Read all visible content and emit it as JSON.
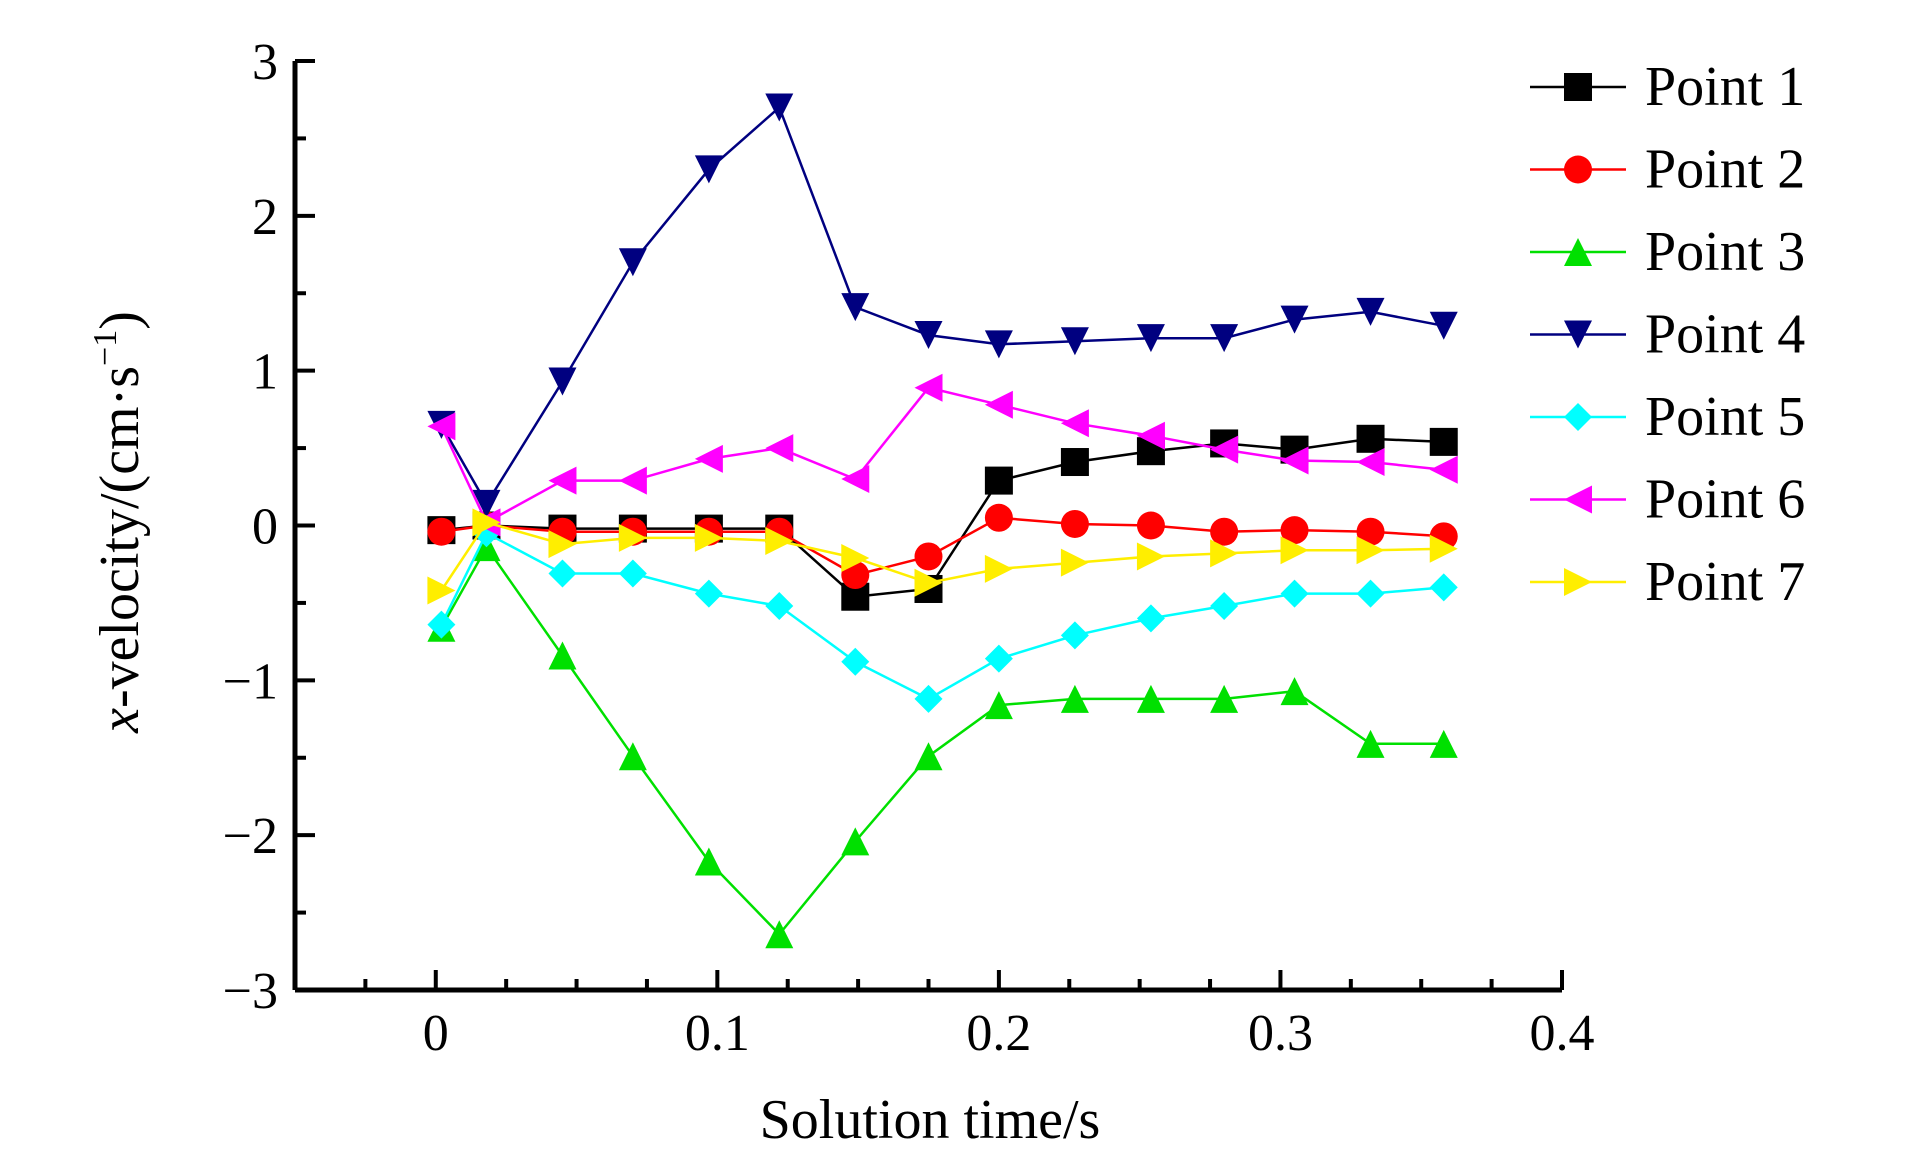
{
  "chart_data": {
    "type": "line",
    "xlabel": "Solution time/s",
    "ylabel": {
      "var": "x",
      "rest": "-velocity/(cm·s",
      "sup": "−1",
      "close": ")"
    },
    "xlim": [
      -0.05,
      0.4
    ],
    "ylim": [
      -3,
      3
    ],
    "x_ticks": [
      0,
      0.1,
      0.2,
      0.3,
      0.4
    ],
    "x_tick_labels": [
      "0",
      "0.1",
      "0.2",
      "0.3",
      "0.4"
    ],
    "y_ticks": [
      -3,
      -2,
      -1,
      0,
      1,
      2,
      3
    ],
    "y_tick_labels": [
      "−3",
      "−2",
      "−1",
      "0",
      "1",
      "2",
      "3"
    ],
    "grid": false,
    "legend_position": "top-right",
    "x": [
      0.002,
      0.018,
      0.045,
      0.07,
      0.097,
      0.122,
      0.149,
      0.175,
      0.2,
      0.227,
      0.254,
      0.28,
      0.305,
      0.332,
      0.358
    ],
    "series": [
      {
        "name": "Point 1",
        "color": "#000000",
        "marker": "square",
        "values": [
          -0.03,
          0.0,
          -0.02,
          -0.02,
          -0.02,
          -0.02,
          -0.46,
          -0.41,
          0.29,
          0.41,
          0.48,
          0.53,
          0.49,
          0.56,
          0.54
        ]
      },
      {
        "name": "Point 2",
        "color": "#ff0000",
        "marker": "circle",
        "values": [
          -0.04,
          0.0,
          -0.04,
          -0.04,
          -0.04,
          -0.04,
          -0.32,
          -0.2,
          0.05,
          0.01,
          0.0,
          -0.04,
          -0.03,
          -0.04,
          -0.07
        ]
      },
      {
        "name": "Point 3",
        "color": "#00e000",
        "marker": "triangle-up",
        "values": [
          -0.66,
          -0.14,
          -0.84,
          -1.49,
          -2.17,
          -2.64,
          -2.04,
          -1.49,
          -1.16,
          -1.12,
          -1.12,
          -1.12,
          -1.07,
          -1.41,
          -1.41
        ]
      },
      {
        "name": "Point 4",
        "color": "#000080",
        "marker": "triangle-down",
        "values": [
          0.65,
          0.14,
          0.93,
          1.7,
          2.3,
          2.7,
          1.41,
          1.23,
          1.17,
          1.19,
          1.21,
          1.21,
          1.33,
          1.38,
          1.29
        ]
      },
      {
        "name": "Point 5",
        "color": "#00ffff",
        "marker": "diamond",
        "values": [
          -0.64,
          -0.05,
          -0.31,
          -0.31,
          -0.44,
          -0.52,
          -0.88,
          -1.12,
          -0.86,
          -0.71,
          -0.6,
          -0.52,
          -0.44,
          -0.44,
          -0.4
        ]
      },
      {
        "name": "Point 6",
        "color": "#ff00ff",
        "marker": "triangle-left",
        "values": [
          0.64,
          0.02,
          0.29,
          0.29,
          0.43,
          0.5,
          0.3,
          0.89,
          0.78,
          0.66,
          0.58,
          0.49,
          0.42,
          0.41,
          0.36
        ]
      },
      {
        "name": "Point 7",
        "color": "#ffee00",
        "marker": "triangle-right",
        "values": [
          -0.42,
          0.02,
          -0.12,
          -0.08,
          -0.08,
          -0.1,
          -0.21,
          -0.37,
          -0.28,
          -0.24,
          -0.2,
          -0.18,
          -0.16,
          -0.16,
          -0.15
        ]
      }
    ]
  }
}
